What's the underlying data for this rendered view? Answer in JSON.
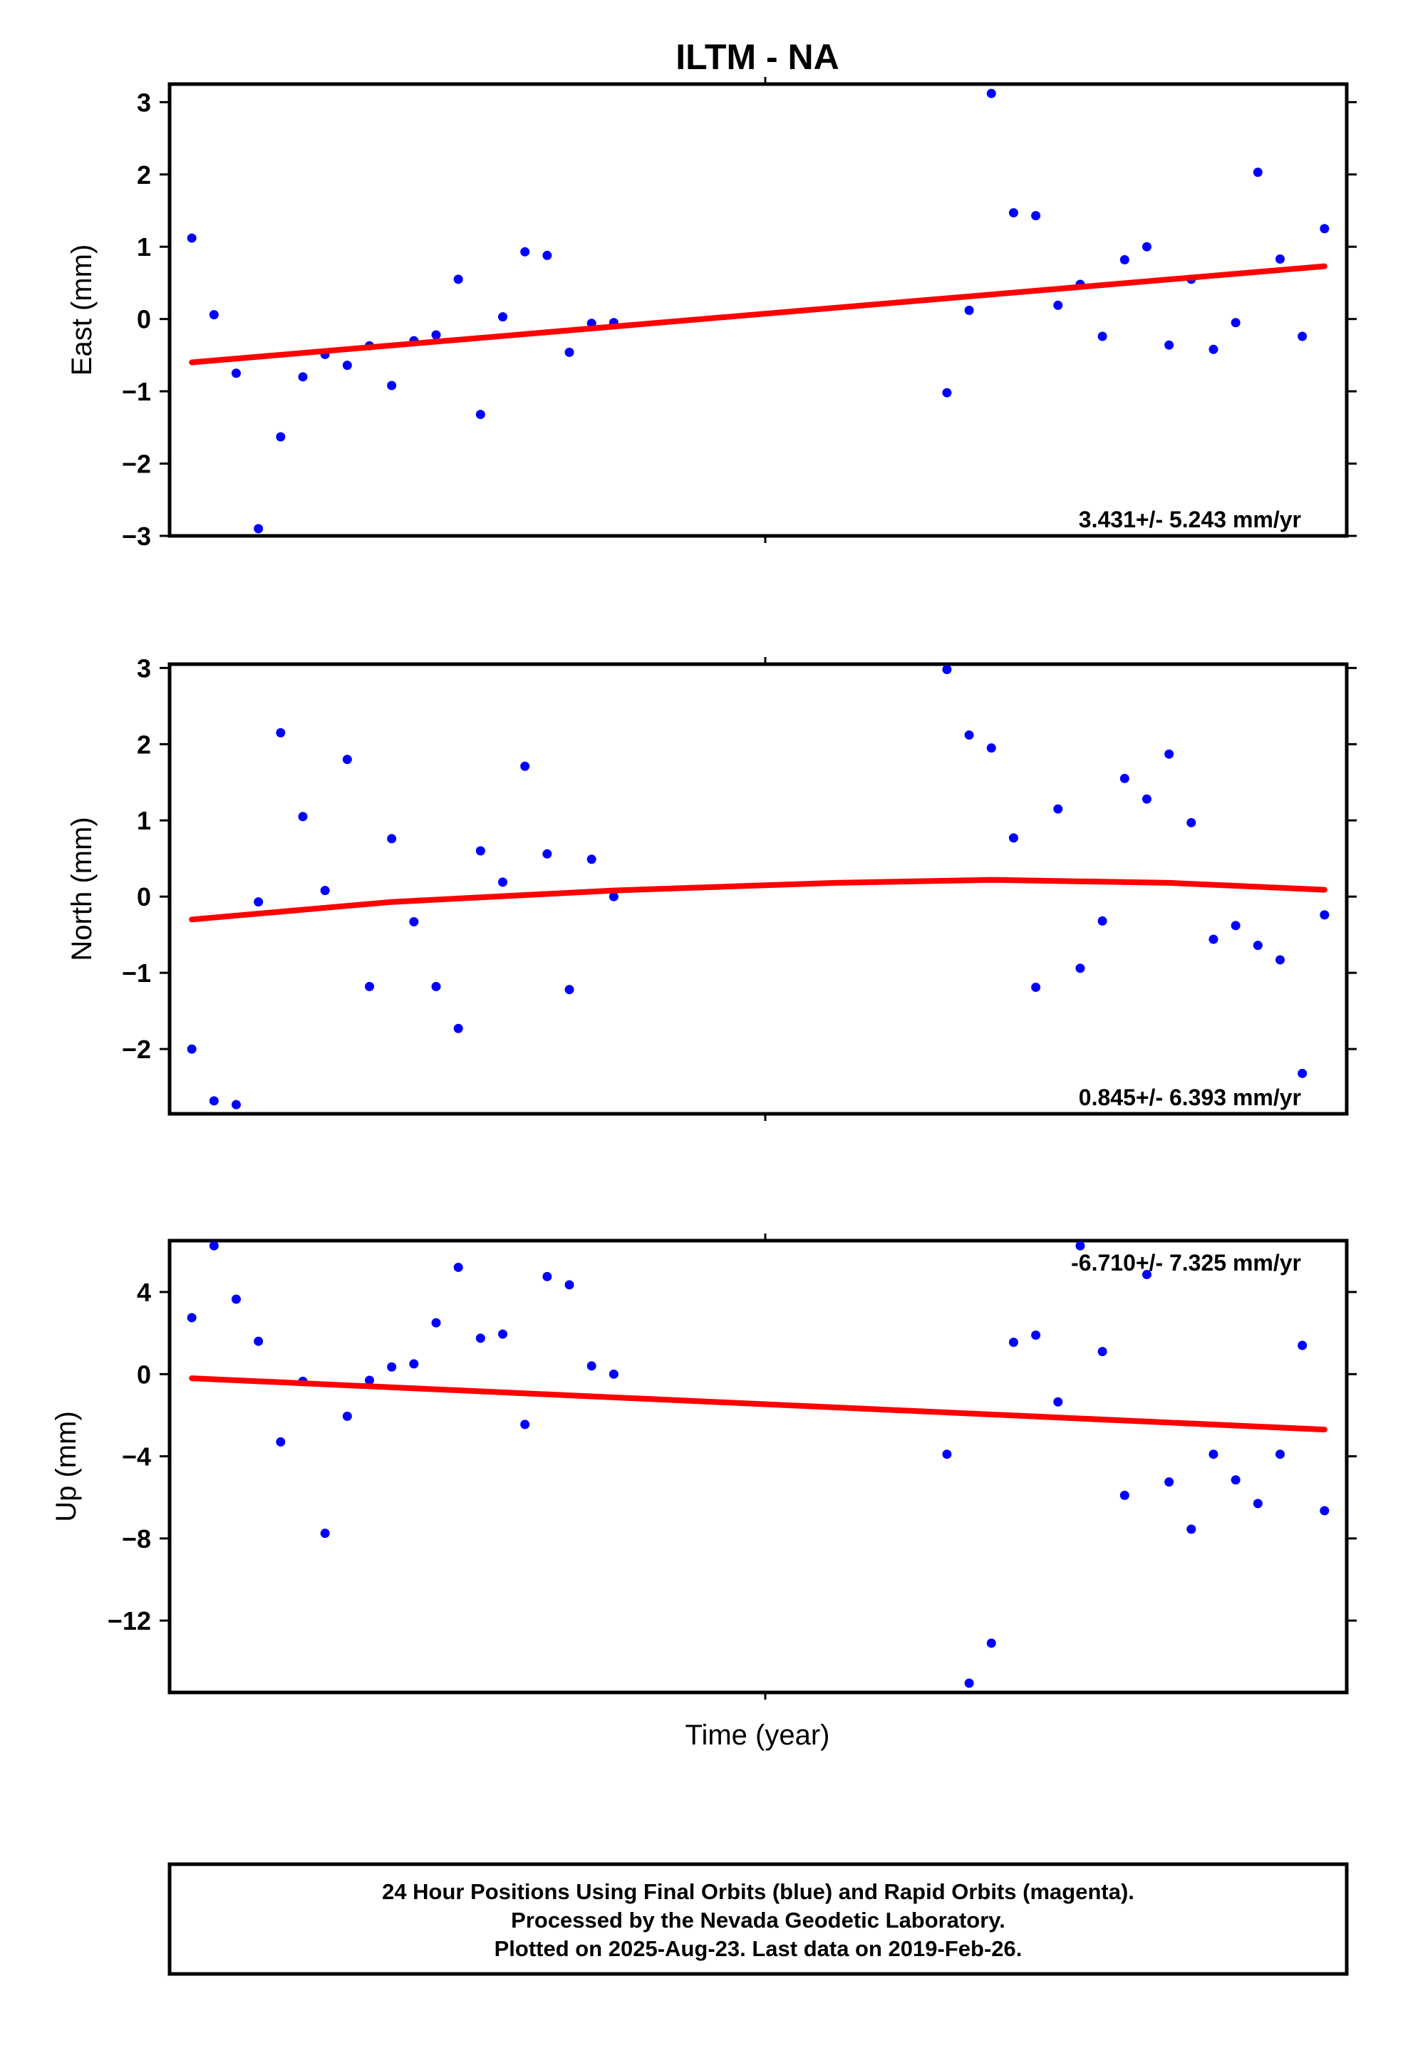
{
  "chart_data": {
    "type": "scatter",
    "title": "ILTM - NA",
    "xlabel": "Time (year)",
    "point_color": "#0000ff",
    "fit_color": "#ff0000",
    "panels": [
      {
        "id": "east",
        "ylabel": "East (mm)",
        "ylim": [
          -3,
          3.25
        ],
        "yticks": [
          3,
          2,
          1,
          0,
          -1,
          -2,
          -3
        ],
        "yticklabels": [
          "3",
          "2",
          "1",
          "0",
          "−1",
          "−2",
          "−3"
        ],
        "rate_label": "3.431+/- 5.243 mm/yr",
        "rate_position": "bottom-right",
        "x": [
          1,
          2,
          3,
          4,
          5,
          6,
          7,
          8,
          9,
          10,
          11,
          12,
          13,
          14,
          15,
          16,
          17,
          18,
          19,
          20,
          35,
          36,
          37,
          38,
          39,
          40,
          41,
          42,
          43,
          44,
          45,
          46,
          47,
          48,
          49,
          50,
          51,
          52
        ],
        "y": [
          1.12,
          0.06,
          -0.75,
          -2.9,
          -1.63,
          -0.8,
          -0.49,
          -0.64,
          -0.37,
          -0.92,
          -0.3,
          -0.22,
          0.55,
          -1.32,
          0.03,
          0.93,
          0.88,
          -0.46,
          -0.06,
          -0.05,
          -1.02,
          0.12,
          3.12,
          1.47,
          1.43,
          0.19,
          0.48,
          -0.24,
          0.82,
          1.0,
          -0.36,
          0.55,
          -0.42,
          -0.05,
          2.03,
          0.83,
          -0.24,
          1.25
        ],
        "fit": {
          "x": [
            1,
            52
          ],
          "y": [
            -0.6,
            0.73
          ]
        }
      },
      {
        "id": "north",
        "ylabel": "North (mm)",
        "ylim": [
          -2.85,
          3.05
        ],
        "yticks": [
          3,
          2,
          1,
          0,
          -1,
          -2
        ],
        "yticklabels": [
          "3",
          "2",
          "1",
          "0",
          "−1",
          "−2"
        ],
        "rate_label": "0.845+/- 6.393 mm/yr",
        "rate_position": "bottom-right",
        "x": [
          1,
          2,
          3,
          4,
          5,
          6,
          7,
          8,
          9,
          10,
          11,
          12,
          13,
          14,
          15,
          16,
          17,
          18,
          19,
          20,
          35,
          36,
          37,
          38,
          39,
          40,
          41,
          42,
          43,
          44,
          45,
          46,
          47,
          48,
          49,
          50,
          51,
          52
        ],
        "y": [
          -2.0,
          -2.68,
          -2.73,
          -0.07,
          2.15,
          1.05,
          0.08,
          1.8,
          -1.18,
          0.76,
          -0.33,
          -1.18,
          -1.73,
          0.6,
          0.19,
          1.71,
          0.56,
          -1.22,
          0.49,
          0.0,
          2.98,
          2.12,
          1.95,
          0.77,
          -1.19,
          1.15,
          -0.94,
          -0.32,
          1.55,
          1.28,
          1.87,
          0.97,
          -0.56,
          -0.38,
          -0.64,
          -0.83,
          -2.32,
          -0.24
        ],
        "fit": {
          "x": [
            1,
            10,
            20,
            30,
            37,
            45,
            52
          ],
          "y": [
            -0.3,
            -0.07,
            0.08,
            0.18,
            0.22,
            0.18,
            0.09
          ]
        }
      },
      {
        "id": "up",
        "ylabel": "Up (mm)",
        "ylim": [
          -15.5,
          6.5
        ],
        "yticks": [
          4,
          0,
          -4,
          -8,
          -12
        ],
        "yticklabels": [
          "4",
          "0",
          "−4",
          "−8",
          "−12"
        ],
        "rate_label": "-6.710+/- 7.325 mm/yr",
        "rate_position": "top-right",
        "x": [
          1,
          2,
          3,
          4,
          5,
          6,
          7,
          8,
          9,
          10,
          11,
          12,
          13,
          14,
          15,
          16,
          17,
          18,
          19,
          20,
          35,
          36,
          37,
          38,
          39,
          40,
          41,
          42,
          43,
          44,
          45,
          46,
          47,
          48,
          49,
          50,
          51,
          52
        ],
        "y": [
          2.75,
          6.25,
          3.65,
          1.6,
          -3.3,
          -0.35,
          -7.75,
          -2.05,
          -0.3,
          0.35,
          0.5,
          2.5,
          5.2,
          1.75,
          1.95,
          -2.45,
          4.75,
          4.35,
          0.4,
          0.0,
          -3.9,
          -15.05,
          -13.1,
          1.55,
          1.9,
          -1.35,
          6.25,
          1.1,
          -5.9,
          4.85,
          -5.25,
          -7.55,
          -3.9,
          -5.15,
          -6.3,
          -3.9,
          1.4,
          -6.65
        ],
        "fit": {
          "x": [
            1,
            52
          ],
          "y": [
            -0.2,
            -2.7
          ]
        }
      }
    ]
  },
  "footer": {
    "line1": "24 Hour Positions Using Final Orbits (blue) and Rapid Orbits (magenta).",
    "line2": "Processed by the Nevada Geodetic Laboratory.",
    "line3": "Plotted on 2025-Aug-23. Last data on 2019-Feb-26."
  }
}
